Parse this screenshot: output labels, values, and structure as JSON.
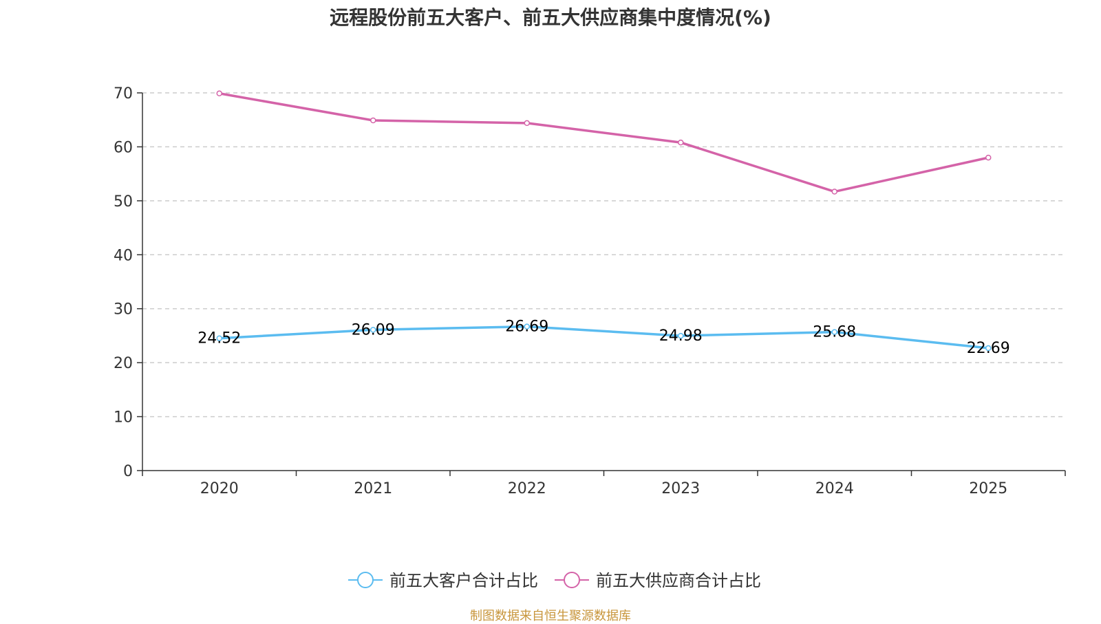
{
  "chart_data": {
    "type": "line",
    "title": "远程股份前五大客户、前五大供应商集中度情况(%)",
    "categories": [
      "2020",
      "2021",
      "2022",
      "2023",
      "2024",
      "2025"
    ],
    "ylim": [
      0,
      70
    ],
    "yticks": [
      0,
      10,
      20,
      30,
      40,
      50,
      60,
      70
    ],
    "grid": true,
    "legend_position": "bottom",
    "series": [
      {
        "name": "前五大客户合计占比",
        "color": "#5bbcf0",
        "values": [
          24.52,
          26.09,
          26.69,
          24.98,
          25.68,
          22.69
        ],
        "labels": [
          "24.52",
          "26.09",
          "26.69",
          "24.98",
          "25.68",
          "22.69"
        ],
        "show_labels": true
      },
      {
        "name": "前五大供应商合计占比",
        "color": "#d463a8",
        "values": [
          69.9,
          64.9,
          64.4,
          60.8,
          51.7,
          58.0
        ],
        "show_labels": false
      }
    ]
  },
  "source_note": "制图数据来自恒生聚源数据库"
}
